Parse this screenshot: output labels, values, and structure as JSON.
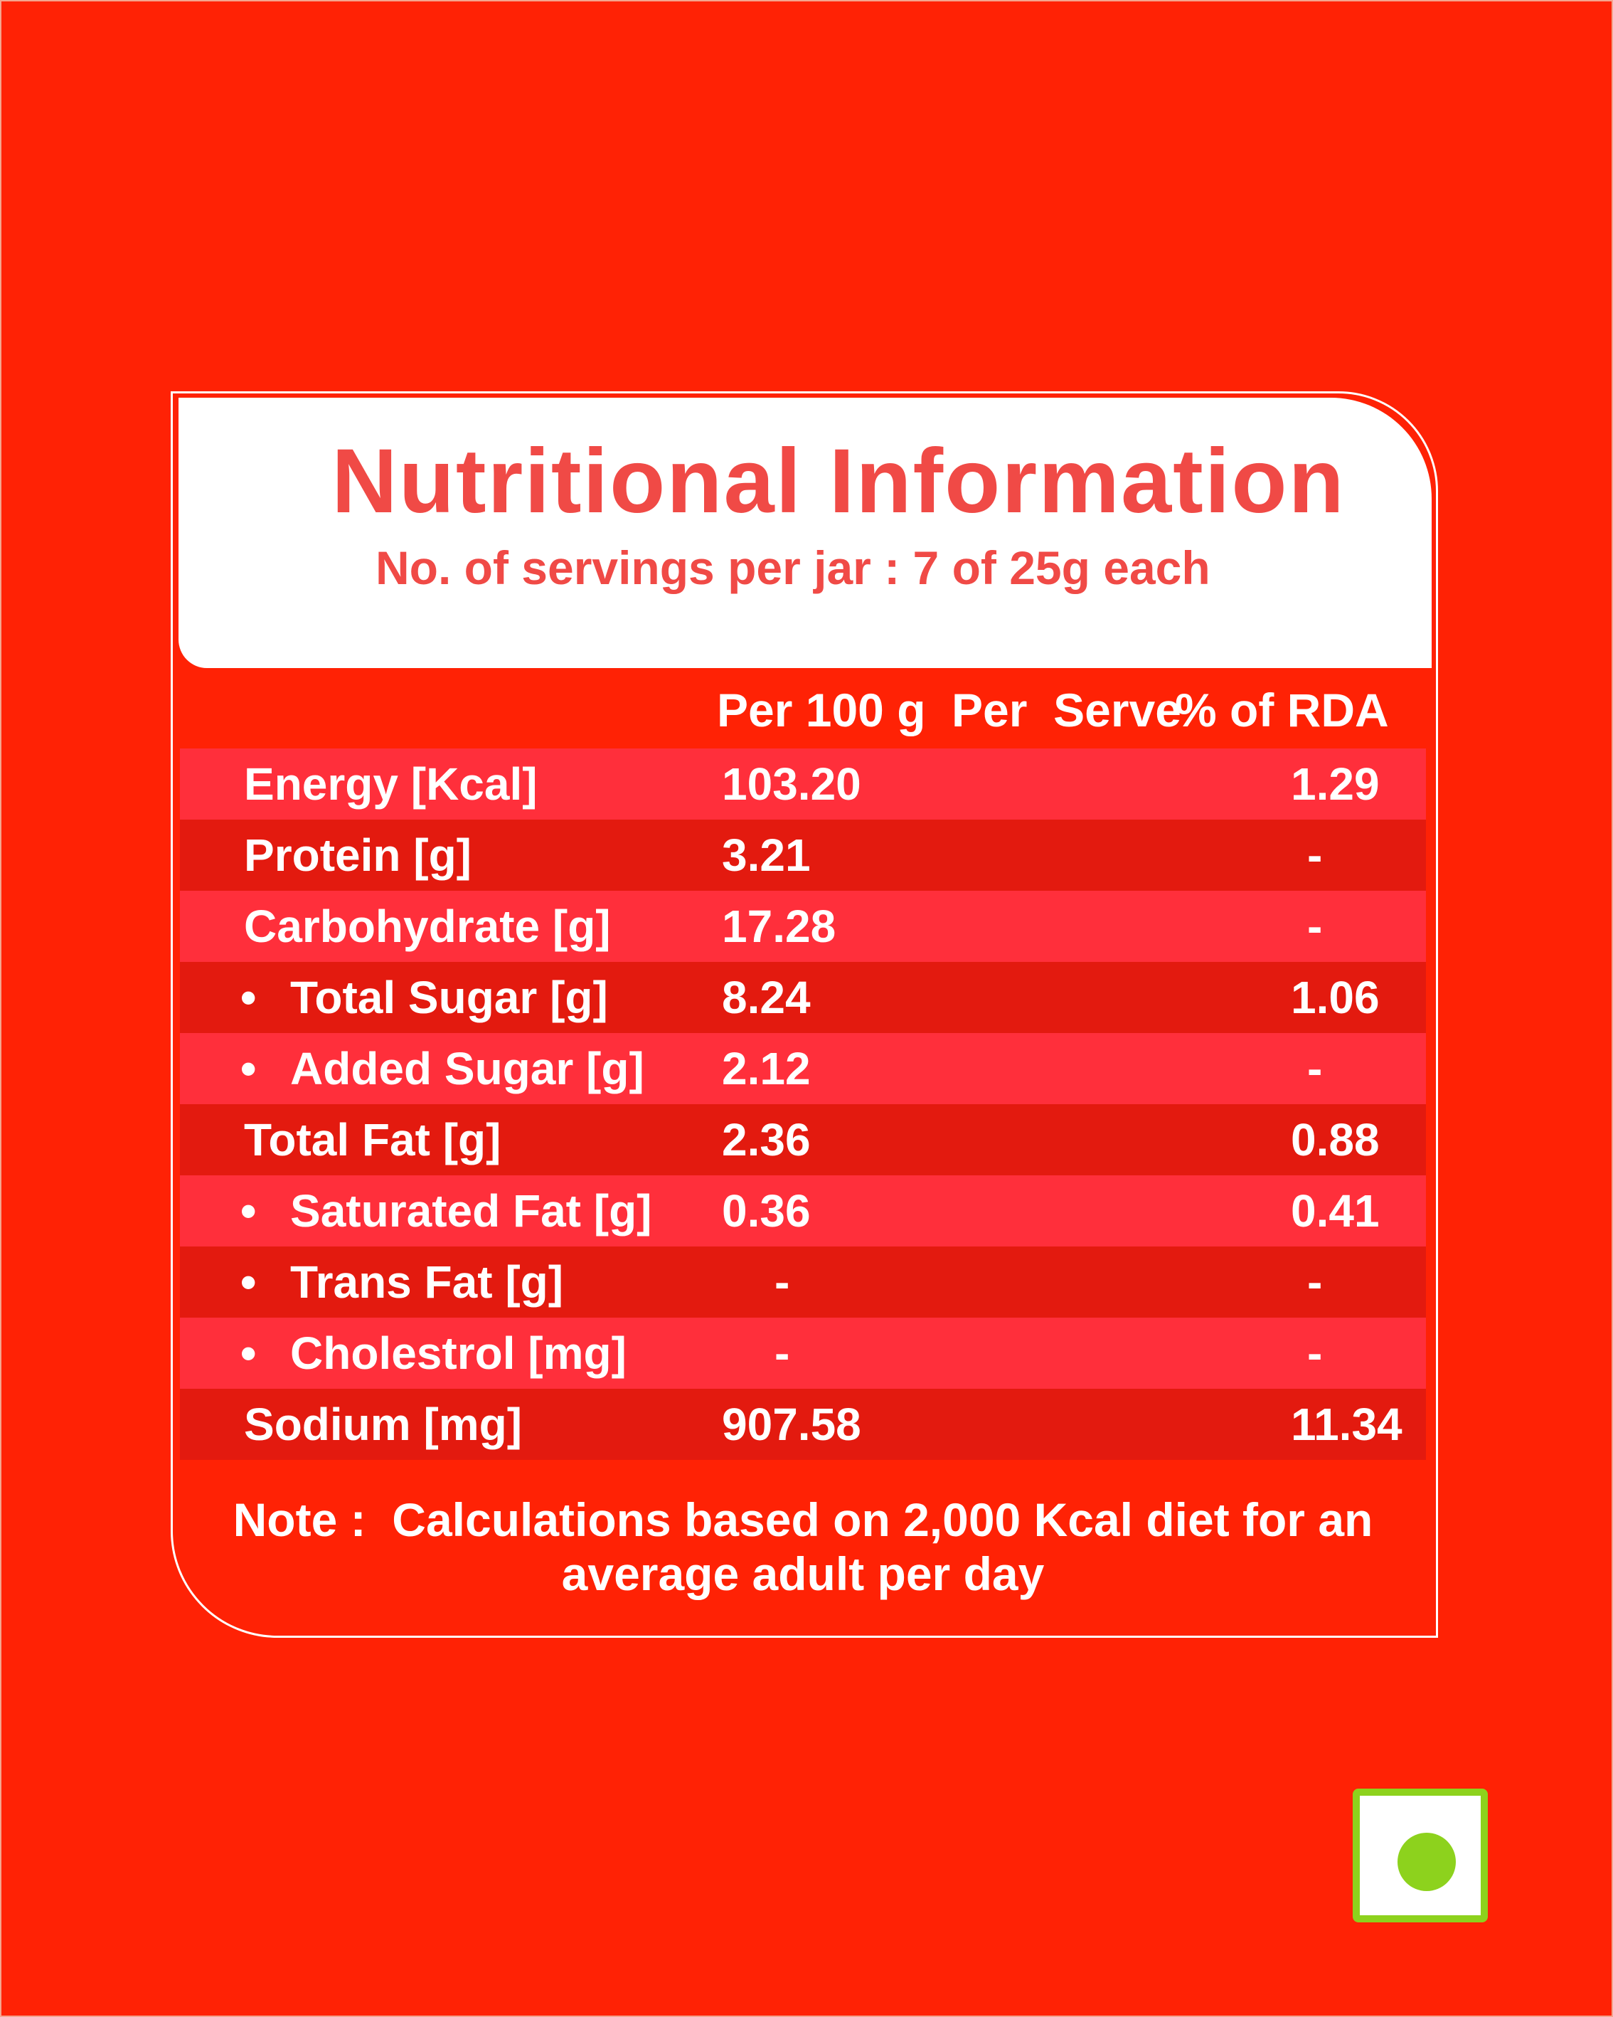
{
  "label": {
    "title": "Nutritional Information",
    "subtitle": "No. of servings per jar : 7 of 25g each",
    "columns": {
      "per_100g": "Per 100 g",
      "per_serve": "Per  Serve",
      "rda": "% of RDA"
    },
    "rows": [
      {
        "name": "Energy [Kcal]",
        "sub": false,
        "per_100g": "103.20",
        "per_serve_rda": "1.29"
      },
      {
        "name": "Protein [g]",
        "sub": false,
        "per_100g": "3.21",
        "per_serve_rda": "-"
      },
      {
        "name": "Carbohydrate [g]",
        "sub": false,
        "per_100g": "17.28",
        "per_serve_rda": "-"
      },
      {
        "name": "Total Sugar [g]",
        "sub": true,
        "per_100g": "8.24",
        "per_serve_rda": "1.06"
      },
      {
        "name": "Added Sugar [g]",
        "sub": true,
        "per_100g": "2.12",
        "per_serve_rda": "-"
      },
      {
        "name": "Total Fat [g]",
        "sub": false,
        "per_100g": "2.36",
        "per_serve_rda": "0.88"
      },
      {
        "name": "Saturated Fat [g]",
        "sub": true,
        "per_100g": "0.36",
        "per_serve_rda": "0.41"
      },
      {
        "name": "Trans Fat [g]",
        "sub": true,
        "per_100g": "-",
        "per_serve_rda": "-"
      },
      {
        "name": "Cholestrol [mg]",
        "sub": true,
        "per_100g": "-",
        "per_serve_rda": "-"
      },
      {
        "name": "Sodium [mg]",
        "sub": false,
        "per_100g": "907.58",
        "per_serve_rda": "11.34"
      }
    ],
    "bullet": "•",
    "note_line1": "Note :  Calculations based on 2,000 Kcal diet for an",
    "note_line2": "average adult per day"
  },
  "veg_mark": {
    "icon": "veg-symbol-icon",
    "color": "#8dd21d"
  },
  "colors": {
    "background": "#ff2205",
    "title": "#f04a46",
    "row_light": "#ff2f3b",
    "row_dark": "#e31a0f"
  }
}
